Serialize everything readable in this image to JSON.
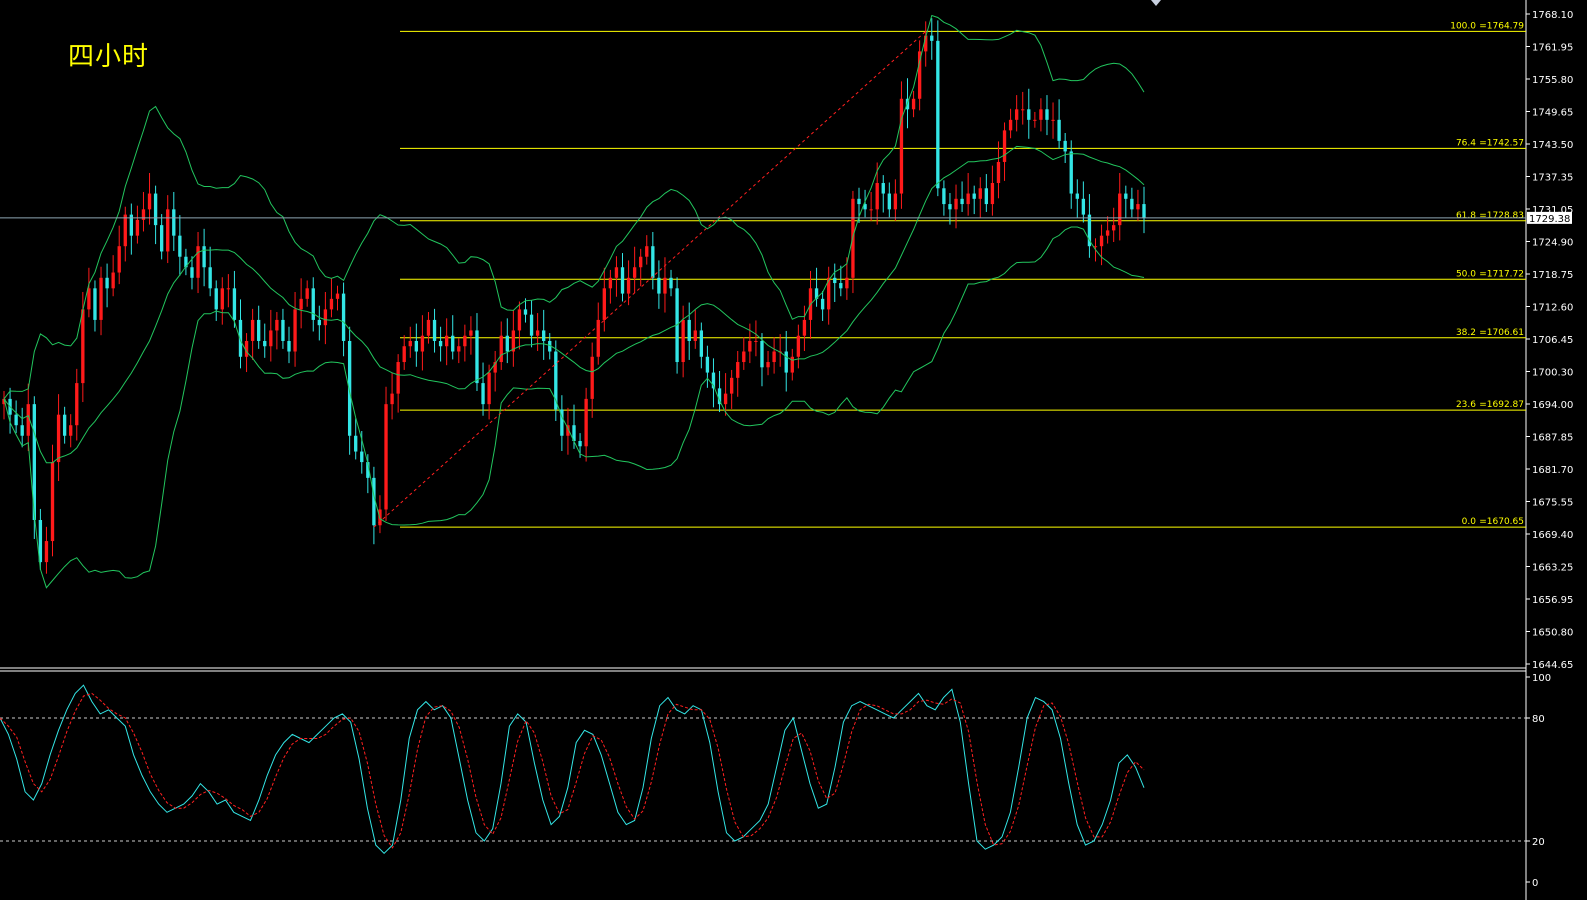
{
  "header": {
    "title": "四小时"
  },
  "colors": {
    "background": "#000000",
    "axis": "#ffffff",
    "bull_candle": "#ff1a1a",
    "bear_candle": "#33e6e6",
    "bollinger": "#22c55e",
    "fib": "#ffff00",
    "stoch_main": "#33e6e6",
    "stoch_signal": "#ff2020",
    "price_line": "#8ea6b4"
  },
  "chart_data": [
    {
      "type": "candlestick",
      "title": "四小时",
      "ylim": [
        1644.65,
        1768.1
      ],
      "y_ticks": [
        "1768.10",
        "1761.95",
        "1755.80",
        "1749.65",
        "1743.50",
        "1737.35",
        "1731.05",
        "1724.90",
        "1718.75",
        "1712.60",
        "1706.45",
        "1700.30",
        "1694.00",
        "1687.85",
        "1681.70",
        "1675.55",
        "1669.40",
        "1663.25",
        "1656.95",
        "1650.80",
        "1644.65"
      ],
      "current_price": "1729.38",
      "fib_levels": [
        {
          "label": "100.0",
          "value": "=1764.79",
          "price": 1764.79
        },
        {
          "label": "76.4",
          "value": "=1742.57",
          "price": 1742.57
        },
        {
          "label": "61.8",
          "value": "=1728.83",
          "price": 1728.83
        },
        {
          "label": "50.0",
          "value": "=1717.72",
          "price": 1717.72
        },
        {
          "label": "38.2",
          "value": "=1706.61",
          "price": 1706.61
        },
        {
          "label": "23.6",
          "value": "=1692.87",
          "price": 1692.87
        },
        {
          "label": "0.0",
          "value": "=1670.65",
          "price": 1670.65
        }
      ],
      "closes": [
        1695,
        1692,
        1690,
        1688,
        1694,
        1672,
        1664,
        1668,
        1683,
        1692,
        1688,
        1690,
        1698,
        1712,
        1716,
        1710,
        1718,
        1716,
        1719,
        1724,
        1730,
        1726,
        1729,
        1731,
        1734,
        1728,
        1723,
        1731,
        1726,
        1722,
        1720,
        1718,
        1724,
        1720,
        1716,
        1712,
        1716,
        1716,
        1710,
        1703,
        1706,
        1710,
        1706,
        1705,
        1708,
        1710,
        1706,
        1704,
        1712,
        1714,
        1716,
        1710,
        1709,
        1712,
        1714,
        1715,
        1706,
        1688,
        1685,
        1683,
        1680,
        1671,
        1674,
        1694,
        1696,
        1702,
        1705,
        1706,
        1704,
        1707,
        1710,
        1706,
        1705,
        1707,
        1704,
        1705,
        1707,
        1708,
        1698,
        1694,
        1700,
        1702,
        1707,
        1704,
        1708,
        1712,
        1711,
        1707,
        1708,
        1706,
        1704,
        1693,
        1688,
        1690,
        1687,
        1686,
        1695,
        1703,
        1710,
        1716,
        1718,
        1720,
        1715,
        1718,
        1720,
        1722,
        1724,
        1718,
        1715,
        1718,
        1716,
        1702,
        1710,
        1706,
        1708,
        1703,
        1700,
        1697,
        1694,
        1696,
        1699,
        1702,
        1704,
        1706,
        1706,
        1701,
        1702,
        1704,
        1704,
        1700,
        1703,
        1707,
        1710,
        1716,
        1714,
        1712,
        1718,
        1717,
        1716,
        1718,
        1733,
        1732,
        1731,
        1731,
        1736,
        1734,
        1731,
        1734,
        1752,
        1750,
        1752,
        1761,
        1764,
        1763,
        1735,
        1732,
        1731,
        1733,
        1732,
        1734,
        1733,
        1735,
        1732,
        1736,
        1740,
        1746,
        1748,
        1750,
        1750,
        1748,
        1748,
        1750,
        1748,
        1748,
        1744,
        1742,
        1734,
        1733,
        1730,
        1724,
        1724,
        1726,
        1727,
        1728,
        1734,
        1733,
        1731,
        1732,
        1729.38
      ],
      "stoch_ticks": [
        "100",
        "80",
        "20",
        "0"
      ],
      "stoch_k": [
        80,
        72,
        60,
        44,
        40,
        48,
        62,
        74,
        84,
        92,
        96,
        88,
        82,
        84,
        80,
        76,
        62,
        52,
        44,
        38,
        34,
        36,
        38,
        42,
        48,
        44,
        38,
        40,
        34,
        32,
        30,
        40,
        52,
        62,
        68,
        72,
        70,
        68,
        72,
        76,
        80,
        82,
        78,
        60,
        36,
        18,
        14,
        18,
        40,
        70,
        84,
        88,
        84,
        86,
        80,
        60,
        40,
        24,
        20,
        26,
        48,
        76,
        82,
        78,
        58,
        40,
        28,
        32,
        46,
        68,
        74,
        72,
        62,
        48,
        34,
        28,
        30,
        46,
        70,
        86,
        90,
        84,
        82,
        86,
        84,
        68,
        44,
        24,
        20,
        22,
        26,
        30,
        38,
        56,
        74,
        80,
        64,
        48,
        36,
        38,
        56,
        78,
        86,
        88,
        86,
        84,
        82,
        80,
        84,
        88,
        92,
        86,
        84,
        90,
        94,
        78,
        48,
        20,
        16,
        18,
        22,
        34,
        56,
        80,
        90,
        88,
        84,
        70,
        48,
        28,
        18,
        20,
        28,
        40,
        58,
        62,
        56,
        46
      ]
    }
  ]
}
